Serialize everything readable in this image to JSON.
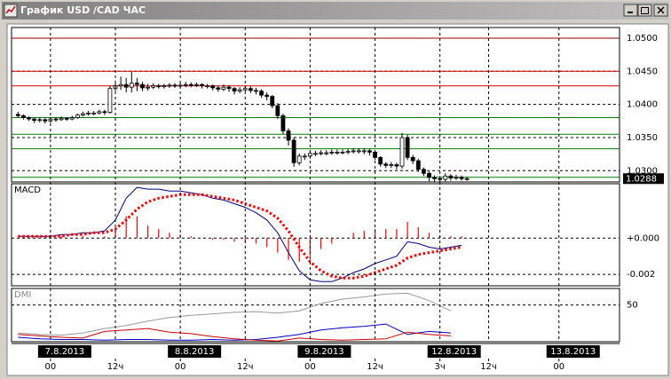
{
  "window": {
    "title": "График USD /CAD  ЧАС"
  },
  "chart_data": [
    {
      "type": "candlestick",
      "color": "#000000",
      "xlim": [
        -7.2,
        105.2
      ],
      "ylim": [
        1.0283,
        1.0516
      ],
      "grid": true,
      "yticks": [
        {
          "value": 1.03,
          "label": "1.0300"
        },
        {
          "value": 1.035,
          "label": "1.0350"
        },
        {
          "value": 1.04,
          "label": "1.0400"
        },
        {
          "value": 1.045,
          "label": "1.0450"
        },
        {
          "value": 1.05,
          "label": "1.0500"
        }
      ],
      "last_price": {
        "value": 1.0288,
        "label": "1.0288"
      },
      "levels": [
        {
          "value": 1.05,
          "color": "#990000"
        },
        {
          "value": 1.045,
          "color": "#cc0000"
        },
        {
          "value": 1.0428,
          "color": "#cc0000"
        },
        {
          "value": 1.038,
          "color": "#008000"
        },
        {
          "value": 1.0355,
          "color": "#008000"
        },
        {
          "value": 1.0333,
          "color": "#008000"
        },
        {
          "value": 1.029,
          "color": "#008000"
        }
      ],
      "x": [
        -6,
        -5,
        -4,
        -3,
        -2,
        -1,
        0,
        1,
        2,
        3,
        4,
        5,
        6,
        7,
        8,
        9,
        10,
        11,
        12,
        13,
        14,
        15,
        16,
        17,
        18,
        19,
        20,
        21,
        22,
        23,
        24,
        25,
        26,
        27,
        28,
        29,
        30,
        31,
        32,
        33,
        34,
        35,
        36,
        37,
        38,
        39,
        40,
        41,
        42,
        43,
        44,
        45,
        46,
        47,
        48,
        49,
        50,
        51,
        52,
        53,
        54,
        55,
        56,
        57,
        58,
        59,
        60,
        61,
        62,
        63,
        64,
        65,
        66,
        67,
        68,
        69,
        70,
        71,
        72,
        73,
        74,
        75,
        76,
        77
      ],
      "open": [
        1.0385,
        1.0383,
        1.038,
        1.0378,
        1.0376,
        1.0377,
        1.0375,
        1.0378,
        1.0377,
        1.0379,
        1.0378,
        1.038,
        1.0384,
        1.0386,
        1.0387,
        1.0387,
        1.0389,
        1.0388,
        1.0424,
        1.0428,
        1.043,
        1.0426,
        1.0432,
        1.043,
        1.0425,
        1.0426,
        1.0428,
        1.0427,
        1.0428,
        1.0429,
        1.0428,
        1.0429,
        1.043,
        1.0429,
        1.043,
        1.0428,
        1.0428,
        1.0425,
        1.0423,
        1.0426,
        1.0424,
        1.042,
        1.0422,
        1.0424,
        1.0421,
        1.042,
        1.0414,
        1.0412,
        1.0398,
        1.0383,
        1.036,
        1.0346,
        1.0312,
        1.0322,
        1.0322,
        1.0326,
        1.0326,
        1.0327,
        1.0327,
        1.0328,
        1.0328,
        1.0328,
        1.0329,
        1.033,
        1.033,
        1.033,
        1.0328,
        1.032,
        1.031,
        1.0308,
        1.0309,
        1.0307,
        1.035,
        1.032,
        1.0315,
        1.0302,
        1.0296,
        1.029,
        1.0288,
        1.0287,
        1.0292,
        1.0289,
        1.029,
        1.0288
      ],
      "high": [
        1.0389,
        1.0385,
        1.0382,
        1.038,
        1.038,
        1.0379,
        1.0381,
        1.0381,
        1.0382,
        1.0381,
        1.0383,
        1.0386,
        1.0389,
        1.039,
        1.039,
        1.0392,
        1.0392,
        1.0428,
        1.0436,
        1.0442,
        1.044,
        1.0449,
        1.044,
        1.0434,
        1.0431,
        1.0432,
        1.0431,
        1.0431,
        1.0432,
        1.0432,
        1.0433,
        1.0434,
        1.0433,
        1.0433,
        1.0432,
        1.0431,
        1.043,
        1.0428,
        1.043,
        1.0429,
        1.0426,
        1.0426,
        1.0428,
        1.0427,
        1.0425,
        1.0423,
        1.0418,
        1.0414,
        1.0402,
        1.0386,
        1.0364,
        1.035,
        1.0326,
        1.0326,
        1.033,
        1.033,
        1.0331,
        1.0331,
        1.0332,
        1.0332,
        1.0332,
        1.0333,
        1.0334,
        1.0334,
        1.0334,
        1.0333,
        1.033,
        1.0322,
        1.0313,
        1.0313,
        1.0312,
        1.0357,
        1.0354,
        1.0324,
        1.0318,
        1.0305,
        1.0299,
        1.0293,
        1.0292,
        1.0296,
        1.0295,
        1.0294,
        1.0293,
        1.0291
      ],
      "low": [
        1.038,
        1.0377,
        1.0375,
        1.0372,
        1.0373,
        1.0371,
        1.0372,
        1.0374,
        1.0375,
        1.0375,
        1.0376,
        1.0378,
        1.0382,
        1.0383,
        1.0384,
        1.0385,
        1.0384,
        1.0386,
        1.042,
        1.0422,
        1.0418,
        1.0418,
        1.042,
        1.042,
        1.0421,
        1.0423,
        1.0424,
        1.0424,
        1.0425,
        1.0425,
        1.0425,
        1.0426,
        1.0426,
        1.0426,
        1.0424,
        1.0424,
        1.0421,
        1.0419,
        1.042,
        1.0419,
        1.0415,
        1.0417,
        1.0419,
        1.0417,
        1.0415,
        1.041,
        1.0406,
        1.0394,
        1.0378,
        1.0355,
        1.0338,
        1.0306,
        1.0308,
        1.0316,
        1.0318,
        1.0322,
        1.0323,
        1.0323,
        1.0324,
        1.0324,
        1.0325,
        1.0325,
        1.0326,
        1.0326,
        1.0325,
        1.0323,
        1.0316,
        1.0306,
        1.0304,
        1.0304,
        1.0302,
        1.0303,
        1.0316,
        1.031,
        1.0298,
        1.0292,
        1.0284,
        1.0282,
        1.0282,
        1.0284,
        1.0285,
        1.0286,
        1.0285,
        1.0285
      ],
      "close": [
        1.0383,
        1.038,
        1.0378,
        1.0376,
        1.0377,
        1.0375,
        1.0378,
        1.0377,
        1.0379,
        1.0378,
        1.038,
        1.0384,
        1.0386,
        1.0387,
        1.0387,
        1.0389,
        1.0388,
        1.0424,
        1.0428,
        1.043,
        1.0426,
        1.0432,
        1.043,
        1.0425,
        1.0426,
        1.0428,
        1.0427,
        1.0428,
        1.0429,
        1.0428,
        1.0429,
        1.043,
        1.0429,
        1.043,
        1.0428,
        1.0428,
        1.0425,
        1.0423,
        1.0426,
        1.0424,
        1.042,
        1.0422,
        1.0424,
        1.0421,
        1.042,
        1.0414,
        1.0412,
        1.0398,
        1.0383,
        1.036,
        1.0346,
        1.0312,
        1.0322,
        1.0322,
        1.0326,
        1.0326,
        1.0327,
        1.0327,
        1.0328,
        1.0328,
        1.0328,
        1.0329,
        1.033,
        1.033,
        1.033,
        1.0328,
        1.032,
        1.031,
        1.0308,
        1.0309,
        1.0307,
        1.035,
        1.032,
        1.0315,
        1.0302,
        1.0296,
        1.029,
        1.0288,
        1.0287,
        1.0292,
        1.0289,
        1.029,
        1.0288,
        1.0288
      ]
    },
    {
      "type": "line",
      "title": "MACD",
      "xlim": [
        -7.2,
        105.2
      ],
      "ylim": [
        -0.00263,
        0.003
      ],
      "grid": true,
      "yticks": [
        {
          "value": 0,
          "label": "+0.000"
        },
        {
          "value": -0.002,
          "label": "-0.002"
        }
      ],
      "x": [
        -6,
        -4,
        -2,
        0,
        2,
        4,
        6,
        8,
        10,
        12,
        14,
        16,
        18,
        20,
        22,
        24,
        26,
        28,
        30,
        32,
        34,
        36,
        38,
        40,
        42,
        44,
        46,
        48,
        50,
        52,
        54,
        56,
        58,
        60,
        62,
        64,
        66,
        68,
        70,
        72,
        74,
        76
      ],
      "series": [
        {
          "style": "bar",
          "color": "#ff0000",
          "values": [
            0,
            0,
            0,
            0,
            0.0001,
            0,
            0.0001,
            0,
            0.0001,
            0.0005,
            0.0012,
            0.0012,
            0.0007,
            0.0005,
            0.0003,
            0.0002,
            0.0001,
            0,
            -0.0001,
            -0.0001,
            -0.0002,
            -0.0002,
            -0.0003,
            -0.0005,
            -0.0008,
            -0.0012,
            -0.0013,
            -0.001,
            -0.0006,
            -0.0003,
            0,
            0.0003,
            0.0004,
            0.0005,
            0.0005,
            0.0005,
            0.0009,
            0.0006,
            0.0003,
            0.0001,
            0.0001,
            0.0001
          ]
        },
        {
          "style": "line",
          "color": "#000080",
          "values": [
            0.0001,
            0.0001,
            0.0001,
            0.0001,
            0.0002,
            0.0002,
            0.0003,
            0.0003,
            0.0004,
            0.001,
            0.0022,
            0.0028,
            0.0027,
            0.0027,
            0.0026,
            0.0026,
            0.0025,
            0.0024,
            0.0022,
            0.0021,
            0.0019,
            0.0017,
            0.0014,
            0.001,
            0.0003,
            -0.0008,
            -0.0018,
            -0.0023,
            -0.0024,
            -0.0024,
            -0.0022,
            -0.0019,
            -0.0017,
            -0.0014,
            -0.0012,
            -0.001,
            -0.0002,
            -0.0003,
            -0.0005,
            -0.0006,
            -0.0005,
            -0.0004
          ]
        },
        {
          "style": "dotted",
          "color": "#ff0000",
          "values": [
            0.0001,
            0.0001,
            0.0001,
            0.0001,
            0.0001,
            0.0002,
            0.0002,
            0.0003,
            0.0003,
            0.0005,
            0.001,
            0.0016,
            0.002,
            0.0022,
            0.0023,
            0.0024,
            0.0024,
            0.0024,
            0.0023,
            0.0022,
            0.0021,
            0.0019,
            0.0017,
            0.0015,
            0.0011,
            0.0004,
            -0.0005,
            -0.0013,
            -0.0018,
            -0.0021,
            -0.0022,
            -0.0022,
            -0.0021,
            -0.0019,
            -0.0017,
            -0.0015,
            -0.0011,
            -0.0009,
            -0.0008,
            -0.0007,
            -0.0006,
            -0.0005
          ]
        }
      ]
    },
    {
      "type": "line",
      "title": "DMI",
      "xlim": [
        -7.2,
        105.2
      ],
      "ylim": [
        0,
        72.5
      ],
      "grid": true,
      "yticks": [
        50
      ],
      "x": [
        -6,
        -2,
        2,
        6,
        10,
        14,
        18,
        22,
        26,
        30,
        34,
        38,
        42,
        46,
        50,
        54,
        58,
        62,
        66,
        70,
        74
      ],
      "series": [
        {
          "style": "line",
          "color": "#999999",
          "values": [
            12,
            10,
            9,
            12,
            18,
            22,
            28,
            33,
            36,
            38,
            40,
            41,
            39,
            42,
            52,
            58,
            61,
            65,
            66,
            56,
            42
          ]
        },
        {
          "style": "line",
          "color": "#0000cc",
          "values": [
            6,
            4,
            3,
            3,
            2,
            3,
            3,
            2,
            2,
            3,
            2,
            3,
            6,
            10,
            16,
            19,
            21,
            24,
            10,
            14,
            12
          ]
        },
        {
          "style": "line",
          "color": "#cc0000",
          "values": [
            10,
            8,
            6,
            5,
            14,
            16,
            18,
            13,
            11,
            7,
            4,
            2,
            1,
            5,
            3,
            2,
            3,
            4,
            13,
            10,
            8
          ]
        }
      ],
      "xticks": [
        {
          "value": 0,
          "label": "00"
        },
        {
          "value": 12,
          "label": "12ч"
        },
        {
          "value": 24,
          "label": "00"
        },
        {
          "value": 36,
          "label": "12ч"
        },
        {
          "value": 48,
          "label": "00"
        },
        {
          "value": 60,
          "label": "12ч"
        },
        {
          "value": 72,
          "label": "3ч"
        },
        {
          "value": 81,
          "label": "12ч"
        },
        {
          "value": 94,
          "label": "00"
        }
      ],
      "date_labels": [
        {
          "value": 0,
          "label": "7.8.2013"
        },
        {
          "value": 24,
          "label": "8.8.2013"
        },
        {
          "value": 48,
          "label": "9.8.2013"
        },
        {
          "value": 72,
          "label": "12.8.2013"
        },
        {
          "value": 94,
          "label": "13.8.2013"
        }
      ]
    }
  ]
}
